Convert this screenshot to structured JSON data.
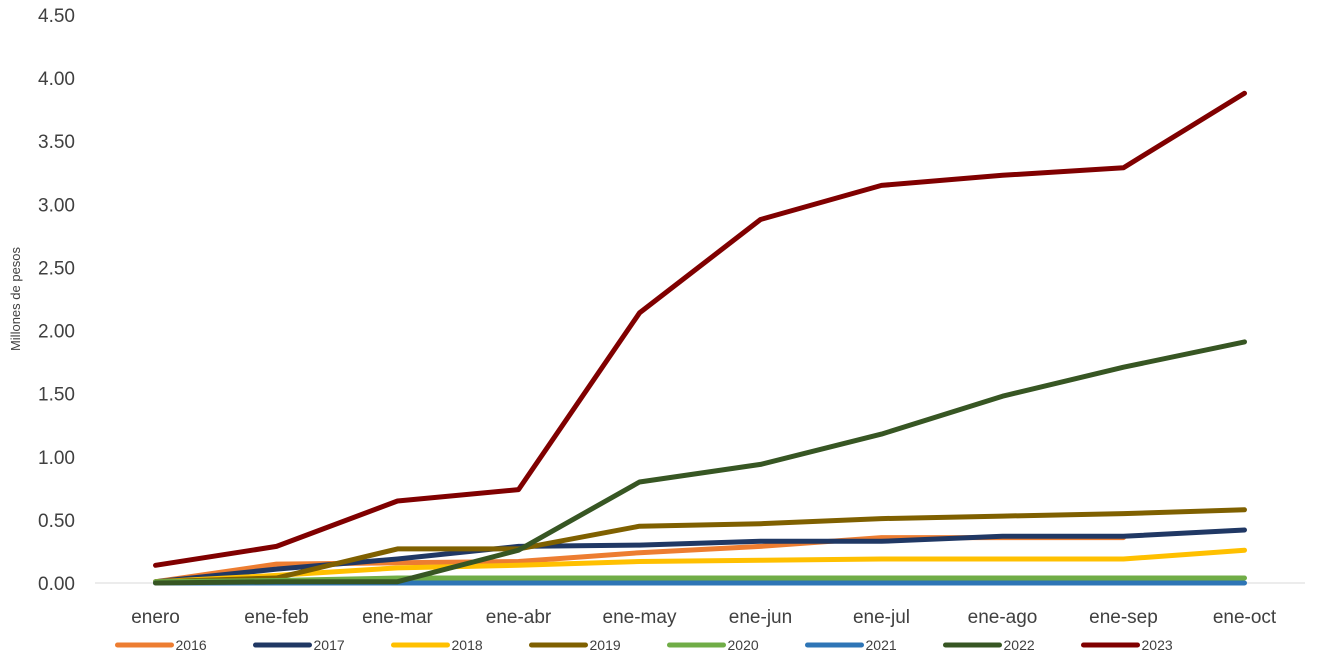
{
  "chart_data": {
    "type": "line",
    "title": "",
    "xlabel": "",
    "ylabel": "Millones de pesos",
    "categories": [
      "enero",
      "ene-feb",
      "ene-mar",
      "ene-abr",
      "ene-may",
      "ene-jun",
      "ene-jul",
      "ene-ago",
      "ene-sep",
      "ene-oct"
    ],
    "ylim": [
      0,
      4.5
    ],
    "yticks": [
      "0.00",
      "0.50",
      "1.00",
      "1.50",
      "2.00",
      "2.50",
      "3.00",
      "3.50",
      "4.00",
      "4.50"
    ],
    "grid": false,
    "legend_position": "bottom",
    "series": [
      {
        "name": "2016",
        "color": "#ED7D31",
        "values": [
          0.01,
          0.15,
          0.16,
          0.17,
          0.24,
          0.29,
          0.36,
          0.36,
          0.36,
          null
        ]
      },
      {
        "name": "2017",
        "color": "#203864",
        "values": [
          0.01,
          0.11,
          0.19,
          0.29,
          0.3,
          0.33,
          0.33,
          0.37,
          0.37,
          0.42
        ]
      },
      {
        "name": "2018",
        "color": "#FFC000",
        "values": [
          0.01,
          0.06,
          0.12,
          0.14,
          0.17,
          0.18,
          0.19,
          0.19,
          0.19,
          0.26
        ]
      },
      {
        "name": "2019",
        "color": "#7F6000",
        "values": [
          0.01,
          0.04,
          0.27,
          0.27,
          0.45,
          0.47,
          0.51,
          0.53,
          0.55,
          0.58
        ]
      },
      {
        "name": "2020",
        "color": "#70AD47",
        "values": [
          0.01,
          0.02,
          0.04,
          0.04,
          0.04,
          0.04,
          0.04,
          0.04,
          0.04,
          0.04
        ]
      },
      {
        "name": "2021",
        "color": "#2E75B6",
        "values": [
          0.0,
          0.0,
          0.0,
          0.0,
          0.0,
          0.0,
          0.0,
          0.0,
          0.0,
          0.0
        ]
      },
      {
        "name": "2022",
        "color": "#375623",
        "values": [
          0.0,
          0.01,
          0.01,
          0.26,
          0.8,
          0.94,
          1.18,
          1.48,
          1.71,
          1.91
        ]
      },
      {
        "name": "2023",
        "color": "#800000",
        "values": [
          0.14,
          0.29,
          0.65,
          0.74,
          2.14,
          2.88,
          3.15,
          3.23,
          3.29,
          3.88
        ]
      }
    ]
  }
}
